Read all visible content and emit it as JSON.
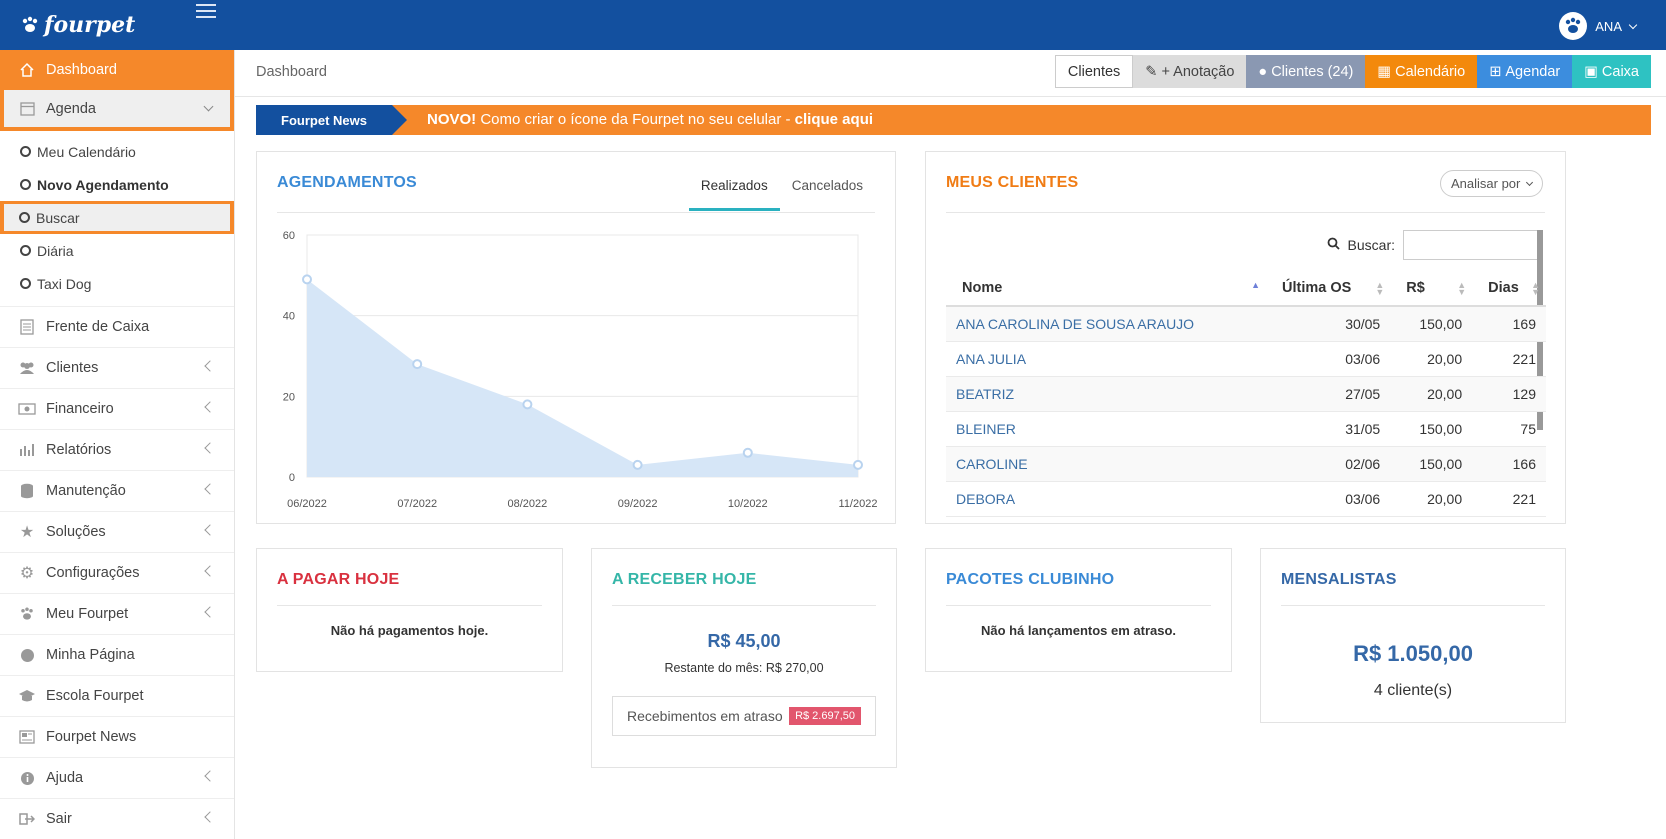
{
  "topbar": {
    "logo": "fourpet",
    "user": "ANA"
  },
  "sidebar": {
    "dashboard": "Dashboard",
    "agenda": "Agenda",
    "agenda_items": [
      {
        "label": "Meu Calendário"
      },
      {
        "label": "Novo Agendamento"
      },
      {
        "label": "Buscar"
      },
      {
        "label": "Diária"
      },
      {
        "label": "Taxi Dog"
      }
    ],
    "items": [
      {
        "label": "Frente de Caixa"
      },
      {
        "label": "Clientes"
      },
      {
        "label": "Financeiro"
      },
      {
        "label": "Relatórios"
      },
      {
        "label": "Manutenção"
      },
      {
        "label": "Soluções"
      },
      {
        "label": "Configurações"
      },
      {
        "label": "Meu Fourpet"
      },
      {
        "label": "Minha Página"
      },
      {
        "label": "Escola Fourpet"
      },
      {
        "label": "Fourpet News"
      },
      {
        "label": "Ajuda"
      },
      {
        "label": "Sair"
      }
    ]
  },
  "header": {
    "breadcrumb": "Dashboard",
    "actions": {
      "clientes": "Clientes",
      "anotacao": "+ Anotação",
      "clientes_count": "Clientes (24)",
      "calendario": "Calendário",
      "agendar": "Agendar",
      "caixa": "Caixa"
    }
  },
  "news": {
    "tag": "Fourpet News",
    "novo": "NOVO!",
    "text": " Como criar o ícone da Fourpet no seu celular - ",
    "link": "clique aqui"
  },
  "agendamentos": {
    "title": "AGENDAMENTOS",
    "tabs": {
      "realizados": "Realizados",
      "cancelados": "Cancelados"
    }
  },
  "chart_data": {
    "type": "area",
    "x": [
      "06/2022",
      "07/2022",
      "08/2022",
      "09/2022",
      "10/2022",
      "11/2022"
    ],
    "series": [
      {
        "values": [
          49,
          28,
          18,
          3,
          6,
          3
        ]
      }
    ],
    "yticks": [
      0,
      20,
      40,
      60
    ],
    "ylim": [
      0,
      60
    ],
    "grid": true,
    "fill_color": "#d6e6f7",
    "point_color": "#b9d3ef"
  },
  "clientes": {
    "title": "MEUS CLIENTES",
    "analisar": "Analisar por",
    "buscar_label": "Buscar:",
    "buscar_value": "",
    "columns": {
      "nome": "Nome",
      "ultima": "Última OS",
      "valor": "R$",
      "dias": "Dias"
    },
    "rows": [
      {
        "nome": "ANA CAROLINA DE SOUSA ARAUJO",
        "ultima": "30/05",
        "valor": "150,00",
        "dias": "169"
      },
      {
        "nome": "ANA JULIA",
        "ultima": "03/06",
        "valor": "20,00",
        "dias": "221"
      },
      {
        "nome": "BEATRIZ",
        "ultima": "27/05",
        "valor": "20,00",
        "dias": "129"
      },
      {
        "nome": "BLEINER",
        "ultima": "31/05",
        "valor": "150,00",
        "dias": "75"
      },
      {
        "nome": "CAROLINE",
        "ultima": "02/06",
        "valor": "150,00",
        "dias": "166"
      },
      {
        "nome": "DEBORA",
        "ultima": "03/06",
        "valor": "20,00",
        "dias": "221"
      }
    ]
  },
  "pagar": {
    "title": "A PAGAR HOJE",
    "empty": "Não há pagamentos hoje.",
    "color": "#d9313f"
  },
  "receber": {
    "title": "A RECEBER HOJE",
    "amount": "R$ 45,00",
    "restante": "Restante do mês: R$ 270,00",
    "atraso_label": "Recebimentos em atraso",
    "atraso_value": "R$ 2.697,50",
    "color": "#35b6a8"
  },
  "pacotes": {
    "title": "PACOTES CLUBINHO",
    "empty": "Não há lançamentos em atraso.",
    "color": "#3a8ad6"
  },
  "mensalistas": {
    "title": "MENSALISTAS",
    "amount": "R$ 1.050,00",
    "count": "4 cliente(s)",
    "color": "#3568a7"
  },
  "colors": {
    "brand": "#13509f",
    "accent": "#f5882a",
    "agend_title": "#3a8ad6",
    "clientes_title": "#f07c15"
  }
}
